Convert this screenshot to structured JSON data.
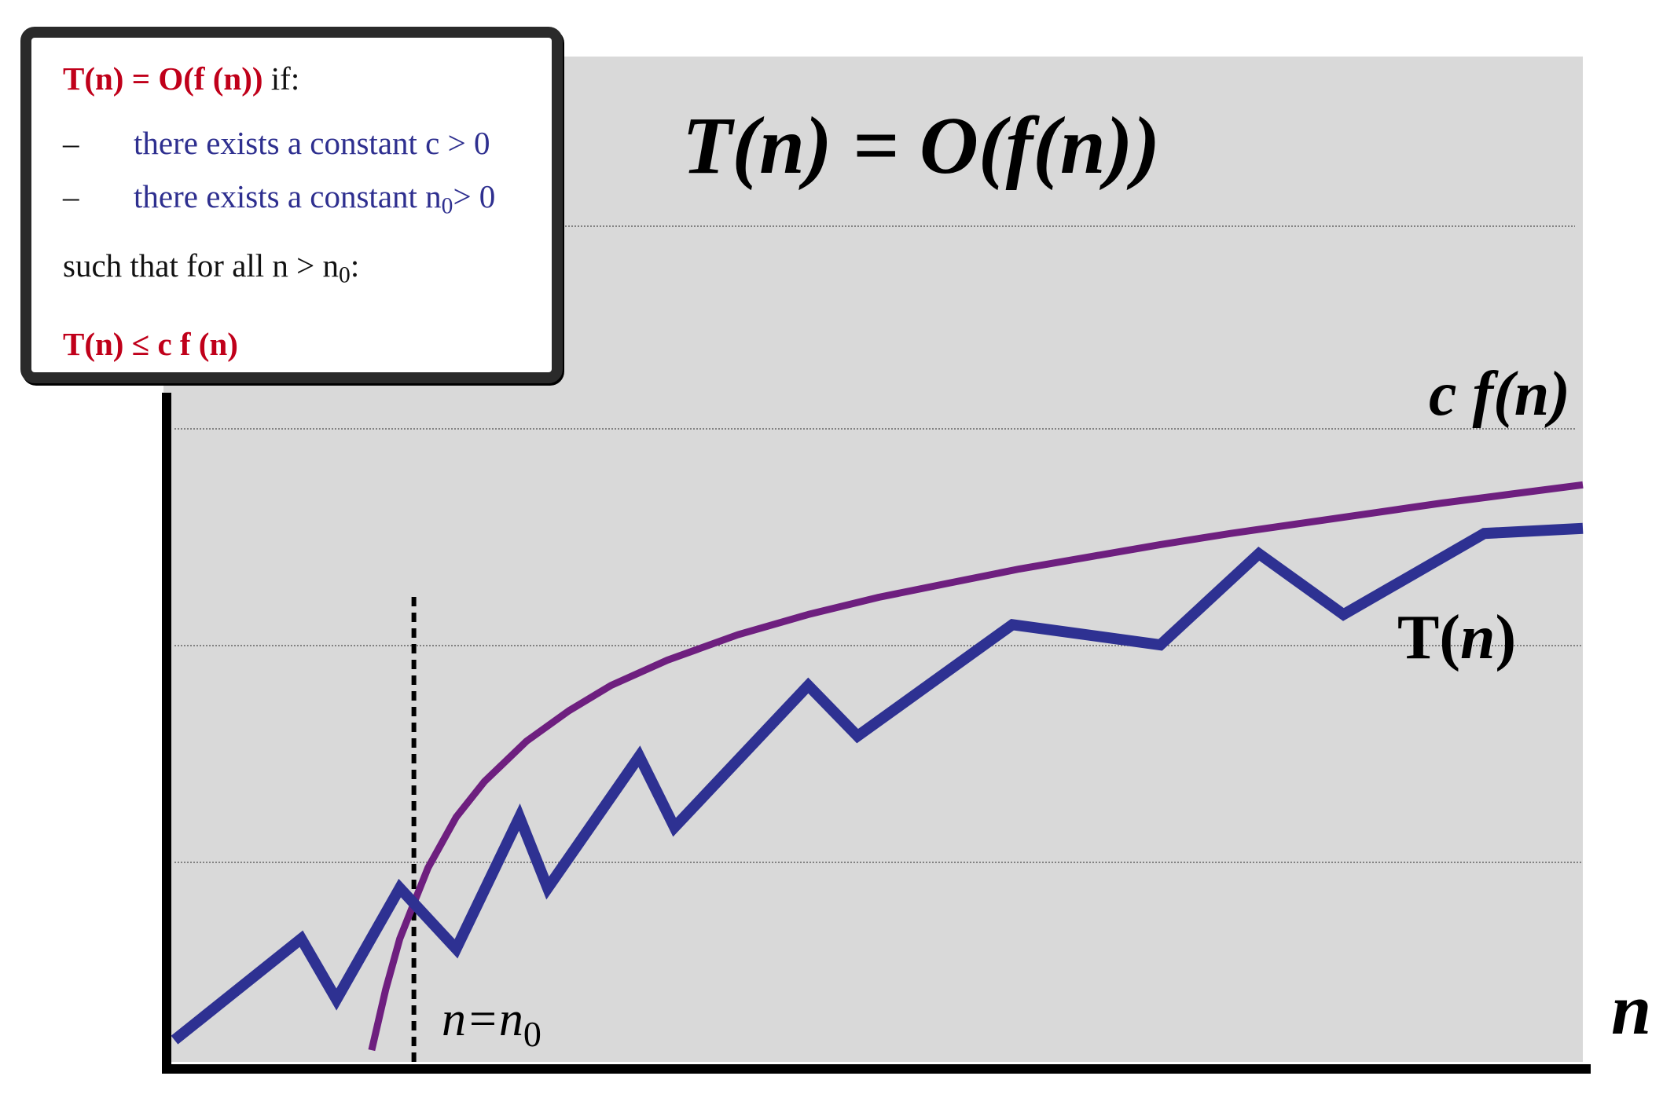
{
  "chart_data": {
    "type": "line",
    "title": "T(n) = O(f(n))",
    "xlabel": "n",
    "ylabel": "",
    "grid": "horizontal",
    "n0": 0.17,
    "n0_label": "n=n",
    "n0_label_sub": "0",
    "series": [
      {
        "name": "c f(n)",
        "color": "#6e1f7f",
        "x": [
          0.14,
          0.15,
          0.16,
          0.17,
          0.18,
          0.19,
          0.2,
          0.22,
          0.25,
          0.28,
          0.31,
          0.35,
          0.4,
          0.45,
          0.5,
          0.55,
          0.6,
          0.65,
          0.7,
          0.75,
          0.8,
          0.85,
          0.9,
          0.95,
          1.0
        ],
        "y": [
          0.01,
          0.07,
          0.12,
          0.155,
          0.19,
          0.215,
          0.24,
          0.275,
          0.315,
          0.345,
          0.37,
          0.395,
          0.42,
          0.44,
          0.457,
          0.471,
          0.485,
          0.497,
          0.509,
          0.52,
          0.53,
          0.54,
          0.55,
          0.559,
          0.568
        ]
      },
      {
        "name": "T(n)",
        "color": "#2e3192",
        "x": [
          0.0,
          0.09,
          0.115,
          0.16,
          0.2,
          0.245,
          0.265,
          0.33,
          0.355,
          0.45,
          0.485,
          0.595,
          0.7,
          0.77,
          0.83,
          0.93,
          1.0
        ],
        "y": [
          0.02,
          0.12,
          0.06,
          0.17,
          0.11,
          0.24,
          0.17,
          0.3,
          0.23,
          0.37,
          0.32,
          0.43,
          0.41,
          0.5,
          0.44,
          0.52,
          0.525
        ]
      }
    ],
    "labels": {
      "cf": {
        "prefix": "c ",
        "fn": "f(n)"
      },
      "tn": {
        "prefix": "T(",
        "var": "n",
        "suffix": ")"
      }
    }
  },
  "definition": {
    "line1_red": "T(n) = O(f (n))",
    "line1_rest": " if:",
    "dash1": "–",
    "bullet1": "there exists a constant c > 0",
    "dash2": "–",
    "bullet2_prefix": "there exists a constant n",
    "bullet2_sub": "0",
    "bullet2_suffix": "> 0",
    "line3_prefix": "such that for all n > n",
    "line3_sub": "0",
    "line3_suffix": ":",
    "line4_red": "T(n) ≤ c f (n)"
  }
}
